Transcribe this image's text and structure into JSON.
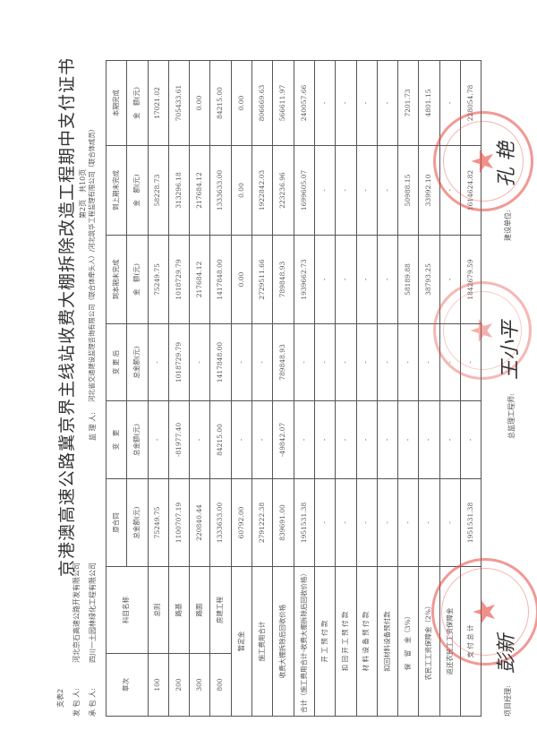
{
  "form_no": "支表2",
  "title": "京港澳高速公路冀京界主线站收费大棚拆除改造工程期中支付证书",
  "page_info": "第2页　共10页",
  "employer": {
    "label": "发 包 人:",
    "value": "河北京石高速公路开发有限公司"
  },
  "contractor": {
    "label": "承 包 人:",
    "value": "四川一土园林绿化工程有限公司"
  },
  "supervisor": {
    "label": "监 理 人:",
    "value": "河北省交通建设监理咨询有限公司（联合体牵头人）/河北筑华工程监理有限公司（联合体成员）"
  },
  "table": {
    "headers": {
      "chapter": "章次",
      "item": "科目名称",
      "orig": "原合同",
      "change": "变　更",
      "after": "变 更 后",
      "cum": "到本期末完成",
      "prev": "到上期末完成",
      "cur": "本期完成",
      "total_amt": "总金额(元)",
      "amt": "金　额(元)"
    },
    "rows": [
      {
        "chapter": "100",
        "item": "总则",
        "orig": "75249.75",
        "change": "-",
        "after": "-",
        "cum": "75249.75",
        "prev": "58228.73",
        "cur": "17021.02"
      },
      {
        "chapter": "200",
        "item": "路基",
        "orig": "1100707.19",
        "change": "-81977.40",
        "after": "1018729.79",
        "cum": "1018729.79",
        "prev": "313296.18",
        "cur": "705433.61"
      },
      {
        "chapter": "300",
        "item": "路面",
        "orig": "220840.44",
        "change": "-",
        "after": "-",
        "cum": "217684.12",
        "prev": "217684.12",
        "cur": "0.00"
      },
      {
        "chapter": "800",
        "item": "房建工程",
        "orig": "1333633.00",
        "change": "84215.00",
        "after": "1417848.00",
        "cum": "1417848.00",
        "prev": "1333633.00",
        "cur": "84215.00"
      },
      {
        "chapter": "",
        "item": "暂定金",
        "orig": "60792.00",
        "change": "-",
        "after": "-",
        "cum": "0.00",
        "prev": "0.00",
        "cur": "0.00"
      },
      {
        "chapter": "",
        "item": "施工费用合计",
        "orig": "2791222.38",
        "change": "-",
        "after": "-",
        "cum": "2729511.66",
        "prev": "1922842.03",
        "cur": "806669.63"
      },
      {
        "chapter": "",
        "item": "收费大棚拆除后回收价格",
        "orig": "839691.00",
        "change": "-49842.07",
        "after": "789848.93",
        "cum": "789848.93",
        "prev": "223236.96",
        "cur": "566611.97"
      },
      {
        "chapter": "",
        "item": "合计（施工费用合计-收费大棚拆除后回收价格）",
        "orig": "1951531.38",
        "change": "-",
        "after": "-",
        "cum": "1939662.73",
        "prev": "1699605.07",
        "cur": "240057.66"
      },
      {
        "chapter": "",
        "item": "开 工 预 付 款",
        "orig": "-",
        "change": "-",
        "after": "-",
        "cum": "-",
        "prev": "-",
        "cur": "-"
      },
      {
        "chapter": "",
        "item": "扣 回 开 工 预 付 款",
        "orig": "-",
        "change": "-",
        "after": "-",
        "cum": "-",
        "prev": "-",
        "cur": "-"
      },
      {
        "chapter": "",
        "item": "材 料 设 备 预 付 款",
        "orig": "-",
        "change": "-",
        "after": "-",
        "cum": "-",
        "prev": "-",
        "cur": "-"
      },
      {
        "chapter": "",
        "item": "扣回材料设备预付款",
        "orig": "-",
        "change": "-",
        "after": "-",
        "cum": "-",
        "prev": "-",
        "cur": "-"
      },
      {
        "chapter": "",
        "item": "保　留　金（3%）",
        "orig": "-",
        "change": "-",
        "after": "-",
        "cum": "58189.88",
        "prev": "50988.15",
        "cur": "7201.73"
      },
      {
        "chapter": "",
        "item": "农民工工资保障金（2%）",
        "orig": "-",
        "change": "-",
        "after": "-",
        "cum": "38793.25",
        "prev": "33992.10",
        "cur": "4801.15"
      },
      {
        "chapter": "",
        "item": "返还农民工工资保障金",
        "orig": "-",
        "change": "-",
        "after": "-",
        "cum": "-",
        "prev": "-",
        "cur": "-"
      },
      {
        "chapter": "",
        "item": "支 付 总 计",
        "orig": "1951531.38",
        "change": "-",
        "after": "-",
        "cum": "1842679.59",
        "prev": "1614624.82",
        "cur": "228054.78"
      }
    ]
  },
  "footer": {
    "pm": "项目经理:",
    "chief": "总监理工程师:",
    "owner": "建设单位:"
  },
  "stamp_color": "#e6463c"
}
